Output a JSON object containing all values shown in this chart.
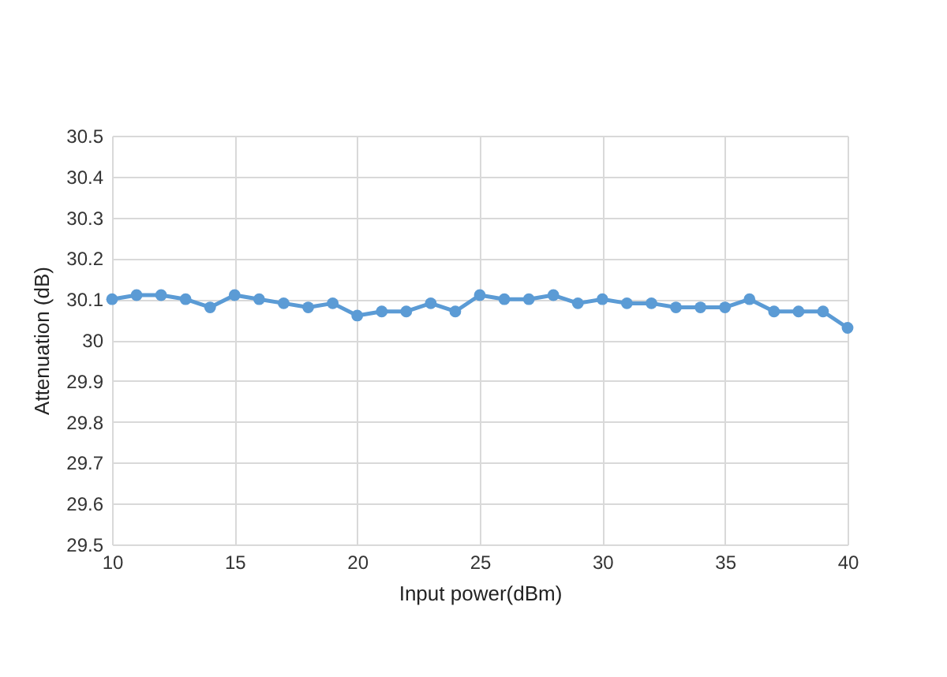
{
  "chart_data": {
    "type": "line",
    "xlabel": "Input power(dBm)",
    "ylabel": "Attenuation  (dB)",
    "x": [
      10,
      11,
      12,
      13,
      14,
      15,
      16,
      17,
      18,
      19,
      20,
      21,
      22,
      23,
      24,
      25,
      26,
      27,
      28,
      29,
      30,
      31,
      32,
      33,
      34,
      35,
      36,
      37,
      38,
      39,
      40
    ],
    "series": [
      {
        "color": "#5b9bd5",
        "values": [
          30.1,
          30.11,
          30.11,
          30.1,
          30.08,
          30.11,
          30.1,
          30.09,
          30.08,
          30.09,
          30.06,
          30.07,
          30.07,
          30.09,
          30.07,
          30.11,
          30.1,
          30.1,
          30.11,
          30.09,
          30.1,
          30.09,
          30.09,
          30.08,
          30.08,
          30.08,
          30.1,
          30.07,
          30.07,
          30.07,
          30.03
        ]
      }
    ],
    "xlim": [
      10,
      40
    ],
    "xticks": [
      10,
      15,
      20,
      25,
      30,
      35,
      40
    ],
    "ylim": [
      29.5,
      30.5
    ],
    "yticks": [
      29.5,
      29.6,
      29.7,
      29.8,
      29.9,
      30,
      30.1,
      30.2,
      30.3,
      30.4,
      30.5
    ],
    "grid": true,
    "marker": "circle",
    "line_style": "solid",
    "legend": false
  }
}
